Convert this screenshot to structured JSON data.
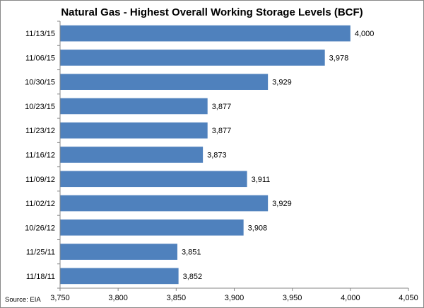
{
  "chart_data": {
    "type": "bar",
    "orientation": "horizontal",
    "title": "Natural Gas - Highest Overall Working Storage Levels (BCF)",
    "source": "Source: EIA",
    "categories": [
      "11/13/15",
      "11/06/15",
      "10/30/15",
      "10/23/15",
      "11/23/12",
      "11/16/12",
      "11/09/12",
      "11/02/12",
      "10/26/12",
      "11/25/11",
      "11/18/11"
    ],
    "values": [
      4000,
      3978,
      3929,
      3877,
      3877,
      3873,
      3911,
      3929,
      3908,
      3851,
      3852
    ],
    "value_labels": [
      "4,000",
      "3,978",
      "3,929",
      "3,877",
      "3,877",
      "3,873",
      "3,911",
      "3,929",
      "3,908",
      "3,851",
      "3,852"
    ],
    "xlim": [
      3750,
      4050
    ],
    "xticks": [
      3750,
      3800,
      3850,
      3900,
      3950,
      4000,
      4050
    ],
    "xtick_labels": [
      "3,750",
      "3,800",
      "3,850",
      "3,900",
      "3,950",
      "4,000",
      "4,050"
    ],
    "bar_color": "#4f81bd",
    "grid": false,
    "legend": "none"
  }
}
